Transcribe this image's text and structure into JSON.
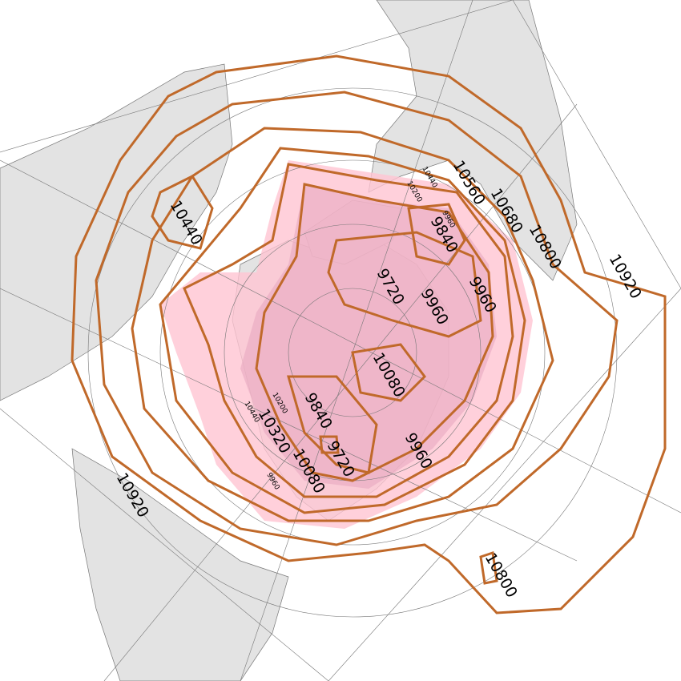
{
  "map": {
    "projection": "north polar stereographic",
    "contour_color": "#c0692a",
    "fill_color_low": "#ffb6c8",
    "land_color": "#e3e3e3",
    "contour_labels": {
      "l10920a": "10920",
      "l10920b": "10920",
      "l10800a": "10800",
      "l10800b": "10800",
      "l10680": "10680",
      "l10560": "10560",
      "l10440": "10440",
      "l9840a": "9840",
      "l9840b": "9840",
      "l9720a": "9720",
      "l9720b": "9720",
      "l9960a": "9960",
      "l9960b": "9960",
      "l9960c": "9960",
      "l10080a": "10080",
      "l10080b": "10080",
      "l10320": "10320",
      "s10200a": "10200",
      "s10440a": "10440",
      "s9960": "9960",
      "s10200b": "10200",
      "s10440b": "10440",
      "s9960b": "9960"
    }
  }
}
